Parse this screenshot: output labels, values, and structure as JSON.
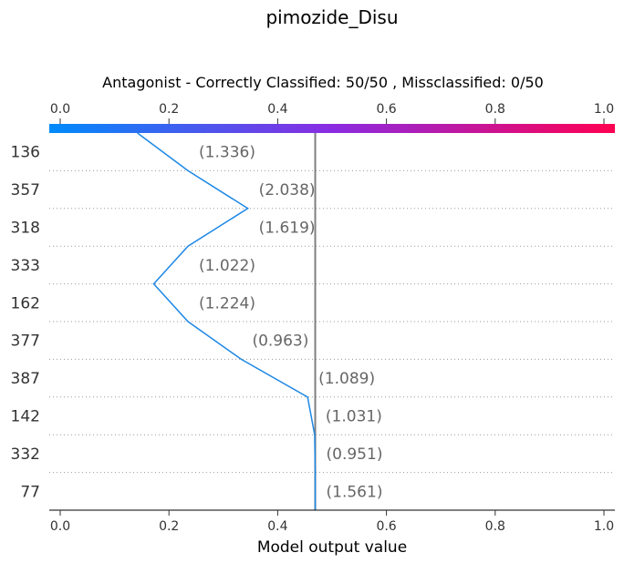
{
  "chart_data": {
    "type": "line",
    "title": "pimozide_Disu",
    "subtitle": "Antagonist - Correctly Classified: 50/50 , Missclassified: 0/50",
    "xlabel": "Model output value",
    "xlim": [
      0.0,
      1.0
    ],
    "xticks": [
      "0.0",
      "0.2",
      "0.4",
      "0.6",
      "0.8",
      "1.0"
    ],
    "xtick_values": [
      0.0,
      0.2,
      0.4,
      0.6,
      0.8,
      1.0
    ],
    "colorbar": {
      "from": "#008bfb",
      "mid": "#8a2be2",
      "to": "#ff0052"
    },
    "base_value": 0.469,
    "line_color": "#1e88e5",
    "reference_line_color": "#808080",
    "features": [
      "136",
      "357",
      "318",
      "333",
      "162",
      "377",
      "387",
      "142",
      "332",
      "77"
    ],
    "feature_values": [
      "(1.336)",
      "(2.038)",
      "(1.619)",
      "(1.022)",
      "(1.224)",
      "(0.963)",
      "(1.089)",
      "(1.031)",
      "(0.951)",
      "(1.561)"
    ],
    "path_x": [
      0.142,
      0.235,
      0.345,
      0.235,
      0.172,
      0.235,
      0.333,
      0.455,
      0.468,
      0.469,
      0.469
    ]
  }
}
